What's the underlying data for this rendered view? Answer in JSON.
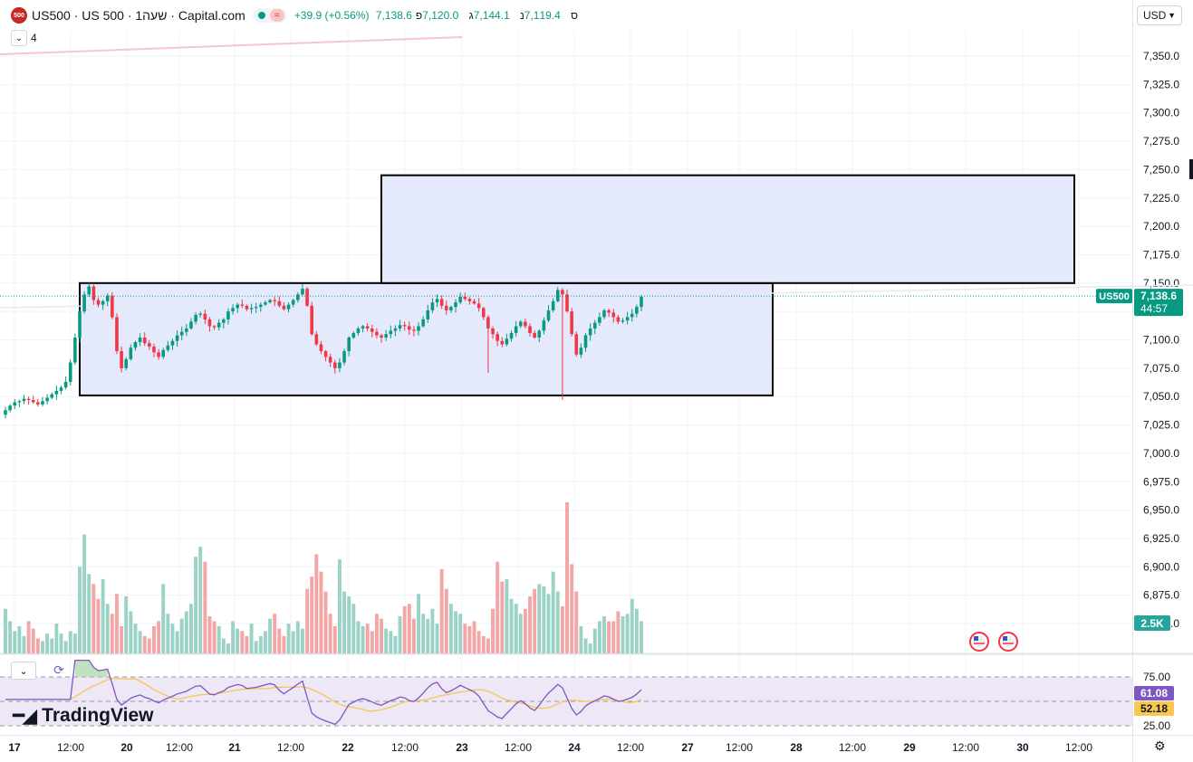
{
  "header": {
    "logo_text": "500",
    "title": "US500 · US 500 · 1שעה · Capital.com",
    "wave_symbol": "≈",
    "change": "+39.9 (+0.56%)",
    "ohlc": [
      {
        "label": "ס",
        "value": "7,138.6"
      },
      {
        "label": "נ",
        "value": "7,119.4"
      },
      {
        "label": "ג",
        "value": "7,144.1"
      },
      {
        "label": "פ",
        "value": "7,120.0"
      }
    ],
    "indicator_count": "4",
    "currency": "USD"
  },
  "colors": {
    "up": "#089981",
    "down": "#f23645",
    "rect_fill": "#e3e9fc",
    "rsi_band": "#ede7f6",
    "rsi_line": "#7e57c2",
    "rsi_ma": "#f9c74f"
  },
  "price_tag": {
    "symbol": "US500",
    "value": "7,138.6",
    "countdown": "44:57"
  },
  "volume_tag": "2.5K",
  "rsi_tags": {
    "rsi": "61.08",
    "ma": "52.18"
  },
  "brand": "TradingView",
  "chart_data": {
    "type": "candlestick",
    "y_axis_ticks": [
      "7,350.0",
      "7,325.0",
      "7,300.0",
      "7,275.0",
      "7,250.0",
      "7,225.0",
      "7,200.0",
      "7,175.0",
      "7,150.0",
      "7,125.0",
      "7,100.0",
      "7,075.0",
      "7,050.0",
      "7,025.0",
      "7,000.0",
      "6,975.0",
      "6,950.0",
      "6,925.0",
      "6,900.0",
      "6,875.0",
      "6,850.0"
    ],
    "x_axis_ticks": [
      "17",
      "12:00",
      "20",
      "12:00",
      "21",
      "12:00",
      "22",
      "12:00",
      "23",
      "12:00",
      "24",
      "12:00",
      "27",
      "12:00",
      "28",
      "12:00",
      "29",
      "12:00",
      "30",
      "12:00"
    ],
    "ylim": [
      6840,
      7362
    ],
    "last_price": 7138.6,
    "rectangles": [
      {
        "price_top": 7150,
        "price_bottom": 7051,
        "session_start": "19",
        "session_end": "25"
      },
      {
        "price_top": 7245,
        "price_bottom": 7150,
        "session_start": "22",
        "session_end": "29"
      }
    ],
    "closes": [
      7038,
      7042,
      7045,
      7046,
      7048,
      7047,
      7045,
      7043,
      7046,
      7049,
      7052,
      7055,
      7058,
      7063,
      7080,
      7102,
      7125,
      7140,
      7147,
      7135,
      7131,
      7134,
      7139,
      7120,
      7090,
      7075,
      7083,
      7093,
      7098,
      7102,
      7097,
      7094,
      7089,
      7085,
      7091,
      7095,
      7099,
      7104,
      7107,
      7110,
      7116,
      7122,
      7123,
      7118,
      7112,
      7111,
      7115,
      7118,
      7125,
      7128,
      7131,
      7130,
      7127,
      7128,
      7129,
      7131,
      7133,
      7135,
      7134,
      7130,
      7127,
      7131,
      7135,
      7140,
      7145,
      7130,
      7105,
      7096,
      7090,
      7085,
      7080,
      7075,
      7080,
      7090,
      7102,
      7106,
      7110,
      7112,
      7110,
      7107,
      7104,
      7102,
      7105,
      7108,
      7110,
      7113,
      7112,
      7109,
      7108,
      7112,
      7118,
      7126,
      7133,
      7136,
      7130,
      7126,
      7129,
      7133,
      7138,
      7136,
      7134,
      7132,
      7128,
      7120,
      7110,
      7105,
      7099,
      7096,
      7101,
      7106,
      7112,
      7116,
      7112,
      7106,
      7102,
      7108,
      7117,
      7126,
      7134,
      7144,
      7140,
      7125,
      7105,
      7087,
      7093,
      7104,
      7110,
      7115,
      7120,
      7126,
      7124,
      7120,
      7116,
      7117,
      7120,
      7123,
      7129,
      7138
    ],
    "volume_scale": "0–6.5K",
    "volumes": [
      1.8,
      1.3,
      0.9,
      1.1,
      0.7,
      1.3,
      1.0,
      0.6,
      0.5,
      0.8,
      0.6,
      1.2,
      0.8,
      0.5,
      0.9,
      0.8,
      3.5,
      4.8,
      3.2,
      2.8,
      2.2,
      3.0,
      2.0,
      1.6,
      2.4,
      1.1,
      2.3,
      1.7,
      1.2,
      0.9,
      0.7,
      0.6,
      1.1,
      1.3,
      2.8,
      1.6,
      1.2,
      0.9,
      1.4,
      1.7,
      2.0,
      3.9,
      4.3,
      3.7,
      1.5,
      1.3,
      1.1,
      0.6,
      0.4,
      1.3,
      1.0,
      0.9,
      0.7,
      1.2,
      0.5,
      0.7,
      0.9,
      1.4,
      1.6,
      1.0,
      0.7,
      1.2,
      0.9,
      1.3,
      1.0,
      2.6,
      3.1,
      4.0,
      3.3,
      2.5,
      1.6,
      1.1,
      3.8,
      2.5,
      2.3,
      2.0,
      1.3,
      1.1,
      1.2,
      0.9,
      1.6,
      1.4,
      1.0,
      0.9,
      0.7,
      1.5,
      1.9,
      2.0,
      1.4,
      2.4,
      1.6,
      1.4,
      1.8,
      1.2,
      3.4,
      2.6,
      2.0,
      1.7,
      1.6,
      1.2,
      1.1,
      1.3,
      0.9,
      0.7,
      0.6,
      1.8,
      3.7,
      2.9,
      3.0,
      2.2,
      2.0,
      1.6,
      1.8,
      2.3,
      2.6,
      2.8,
      2.7,
      2.4,
      3.3,
      2.5,
      1.9,
      6.1,
      3.6,
      2.5,
      1.1,
      0.6,
      0.4,
      1.0,
      1.3,
      1.5,
      1.3,
      1.3,
      1.7,
      1.5,
      1.6,
      2.2,
      1.8,
      1.3
    ],
    "rsi_levels": {
      "upper": 75,
      "middle": 50,
      "lower": 25
    },
    "rsi_last": 61.08,
    "rsi_ma_last": 52.18
  }
}
